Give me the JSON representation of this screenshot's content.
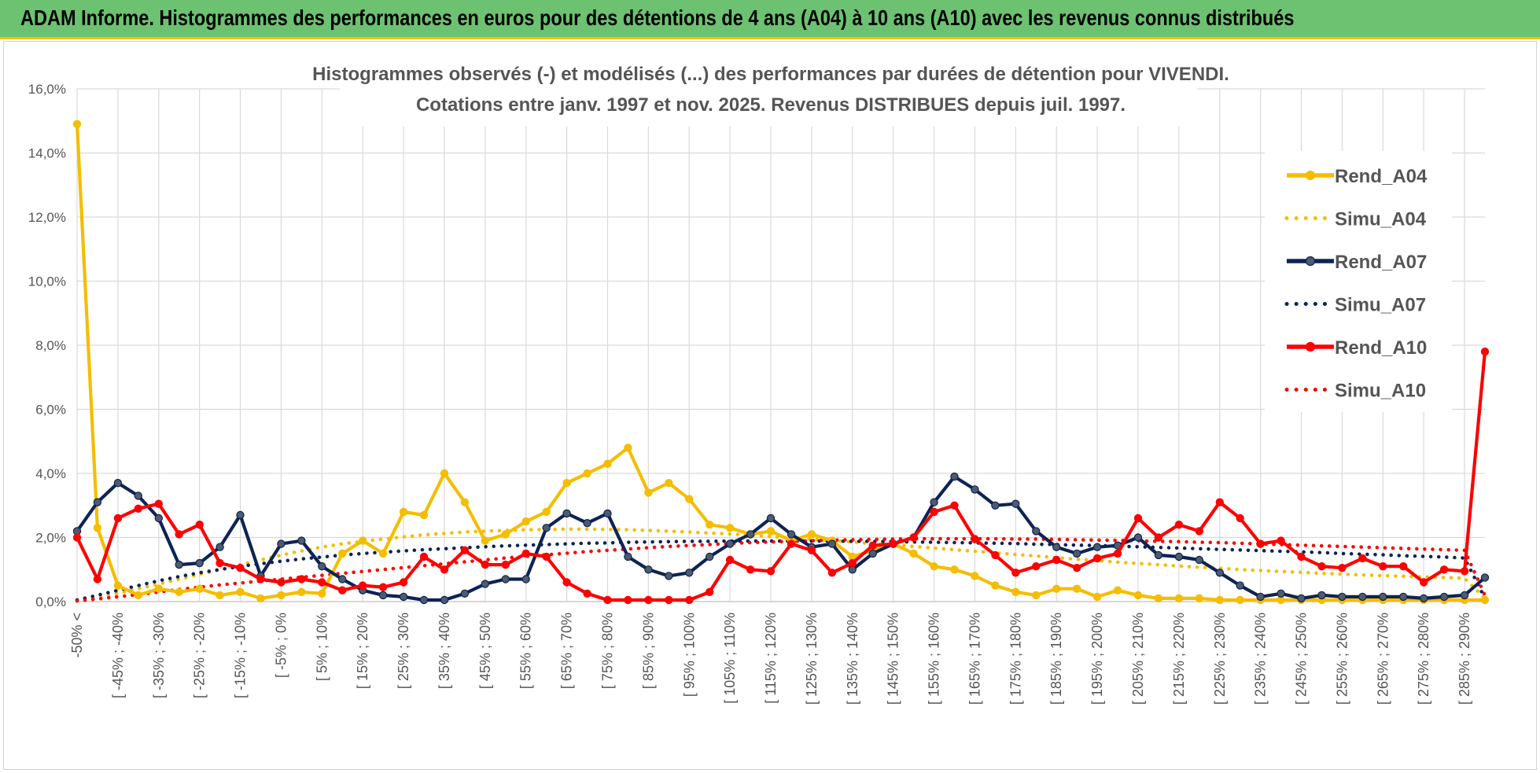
{
  "banner": {
    "title": "ADAM Informe. Histogrammes des performances en euros pour des détentions de 4 ans (A04) à 10 ans (A10) avec les revenus connus distribués"
  },
  "chart_data": {
    "type": "line",
    "title": "Histogrammes observés (-) et modélisés (...) des performances par durées de détention pour VIVENDI.",
    "subtitle": "Cotations entre janv. 1997 et nov. 2025. Revenus DISTRIBUES depuis juil. 1997.",
    "xlabel": "",
    "ylabel": "",
    "ylim": [
      0,
      16
    ],
    "yticks": [
      "0,0%",
      "2,0%",
      "4,0%",
      "6,0%",
      "8,0%",
      "10,0%",
      "12,0%",
      "14,0%",
      "16,0%"
    ],
    "x_tick_labels": [
      "-50% <",
      "[ -45% ; -40%",
      "[ -35% ; -30%",
      "[ -25% ; -20%",
      "[ -15% ; -10%",
      "[ -5% ; 0%",
      "[ 5% ; 10%",
      "[ 15% ; 20%",
      "[ 25% ; 30%",
      "[ 35% ; 40%",
      "[ 45% ; 50%",
      "[ 55% ; 60%",
      "[ 65% ; 70%",
      "[ 75% ; 80%",
      "[ 85% ; 90%",
      "[ 95% ; 100%",
      "[ 105% ; 110%",
      "[ 115% ; 120%",
      "[ 125% ; 130%",
      "[ 135% ; 140%",
      "[ 145% ; 150%",
      "[ 155% ; 160%",
      "[ 165% ; 170%",
      "[ 175% ; 180%",
      "[ 185% ; 190%",
      "[ 195% ; 200%",
      "[ 205% ; 210%",
      "[ 215% ; 220%",
      "[ 225% ; 230%",
      "[ 235% ; 240%",
      "[ 245% ; 250%",
      "[ 255% ; 260%",
      "[ 265% ; 270%",
      "[ 275% ; 280%",
      "[ 285% ; 290%"
    ],
    "n_categories": 70,
    "grid": true,
    "legend_position": "right",
    "series": [
      {
        "name": "Rend_A04",
        "style": "solid",
        "marker": true,
        "color": "#f5bd00",
        "values": [
          14.9,
          2.3,
          0.5,
          0.2,
          0.4,
          0.3,
          0.4,
          0.2,
          0.3,
          0.1,
          0.2,
          0.3,
          0.25,
          1.5,
          1.9,
          1.5,
          2.8,
          2.7,
          4.0,
          3.1,
          1.9,
          2.1,
          2.5,
          2.8,
          3.7,
          4.0,
          4.3,
          4.8,
          3.4,
          3.7,
          3.2,
          2.4,
          2.3,
          2.1,
          2.2,
          1.9,
          2.1,
          1.9,
          1.4,
          1.6,
          1.8,
          1.5,
          1.1,
          1.0,
          0.8,
          0.5,
          0.3,
          0.2,
          0.4,
          0.4,
          0.15,
          0.35,
          0.2,
          0.1,
          0.1,
          0.1,
          0.05,
          0.05,
          0.05,
          0.05,
          0.05,
          0.05,
          0.05,
          0.05,
          0.05,
          0.05,
          0.05,
          0.05,
          0.05,
          0.05
        ]
      },
      {
        "name": "Simu_A04",
        "style": "dotted",
        "marker": false,
        "color": "#f5bd00",
        "values": [
          0.05,
          0.12,
          0.25,
          0.4,
          0.55,
          0.7,
          0.85,
          1.0,
          1.15,
          1.3,
          1.45,
          1.58,
          1.7,
          1.8,
          1.88,
          1.95,
          2.02,
          2.08,
          2.13,
          2.17,
          2.2,
          2.22,
          2.24,
          2.25,
          2.26,
          2.26,
          2.25,
          2.24,
          2.22,
          2.2,
          2.17,
          2.14,
          2.11,
          2.07,
          2.03,
          1.99,
          1.95,
          1.91,
          1.86,
          1.81,
          1.77,
          1.72,
          1.67,
          1.62,
          1.57,
          1.52,
          1.47,
          1.42,
          1.37,
          1.32,
          1.28,
          1.23,
          1.19,
          1.15,
          1.11,
          1.07,
          1.04,
          1.0,
          0.97,
          0.94,
          0.91,
          0.88,
          0.86,
          0.83,
          0.81,
          0.79,
          0.77,
          0.75,
          0.73,
          0.1
        ]
      },
      {
        "name": "Rend_A07",
        "style": "solid",
        "marker": true,
        "color": "#0e2354",
        "values": [
          2.2,
          3.1,
          3.7,
          3.3,
          2.6,
          1.15,
          1.2,
          1.7,
          2.7,
          0.8,
          1.8,
          1.9,
          1.1,
          0.7,
          0.35,
          0.2,
          0.15,
          0.05,
          0.05,
          0.25,
          0.55,
          0.7,
          0.7,
          2.3,
          2.75,
          2.45,
          2.75,
          1.4,
          1.0,
          0.8,
          0.9,
          1.4,
          1.8,
          2.1,
          2.6,
          2.1,
          1.7,
          1.8,
          1.0,
          1.5,
          1.8,
          2.0,
          3.1,
          3.9,
          3.5,
          3.0,
          3.05,
          2.2,
          1.7,
          1.5,
          1.7,
          1.75,
          2.0,
          1.45,
          1.4,
          1.3,
          0.9,
          0.5,
          0.15,
          0.25,
          0.1,
          0.2,
          0.15,
          0.15,
          0.15,
          0.15,
          0.1,
          0.15,
          0.2,
          0.75
        ]
      },
      {
        "name": "Simu_A07",
        "style": "dotted",
        "marker": false,
        "color": "#0e2354",
        "values": [
          0.05,
          0.2,
          0.35,
          0.5,
          0.65,
          0.78,
          0.9,
          1.0,
          1.1,
          1.18,
          1.26,
          1.33,
          1.39,
          1.45,
          1.5,
          1.54,
          1.58,
          1.62,
          1.65,
          1.68,
          1.71,
          1.74,
          1.76,
          1.78,
          1.8,
          1.82,
          1.83,
          1.85,
          1.86,
          1.87,
          1.88,
          1.88,
          1.89,
          1.89,
          1.89,
          1.89,
          1.89,
          1.89,
          1.88,
          1.88,
          1.87,
          1.86,
          1.85,
          1.84,
          1.83,
          1.82,
          1.81,
          1.79,
          1.78,
          1.76,
          1.75,
          1.73,
          1.71,
          1.69,
          1.67,
          1.65,
          1.63,
          1.61,
          1.59,
          1.57,
          1.55,
          1.53,
          1.5,
          1.48,
          1.46,
          1.43,
          1.41,
          1.39,
          1.36,
          0.1
        ]
      },
      {
        "name": "Rend_A10",
        "style": "solid",
        "marker": true,
        "color": "#ff0000",
        "values": [
          2.0,
          0.7,
          2.6,
          2.9,
          3.05,
          2.1,
          2.4,
          1.2,
          1.05,
          0.7,
          0.6,
          0.7,
          0.6,
          0.35,
          0.5,
          0.45,
          0.6,
          1.4,
          1.0,
          1.6,
          1.15,
          1.15,
          1.5,
          1.4,
          0.6,
          0.25,
          0.05,
          0.05,
          0.05,
          0.05,
          0.05,
          0.3,
          1.3,
          1.0,
          0.95,
          1.8,
          1.6,
          0.9,
          1.2,
          1.75,
          1.8,
          2.0,
          2.8,
          3.0,
          1.95,
          1.45,
          0.9,
          1.1,
          1.3,
          1.05,
          1.35,
          1.5,
          2.6,
          2.0,
          2.4,
          2.2,
          3.1,
          2.6,
          1.8,
          1.9,
          1.4,
          1.1,
          1.05,
          1.35,
          1.1,
          1.1,
          0.6,
          1.0,
          0.95,
          7.8
        ]
      },
      {
        "name": "Simu_A10",
        "style": "dotted",
        "marker": false,
        "color": "#ff0000",
        "values": [
          0.02,
          0.08,
          0.15,
          0.22,
          0.3,
          0.38,
          0.45,
          0.52,
          0.58,
          0.64,
          0.7,
          0.76,
          0.82,
          0.88,
          0.94,
          1.0,
          1.06,
          1.12,
          1.18,
          1.24,
          1.3,
          1.36,
          1.41,
          1.46,
          1.51,
          1.56,
          1.6,
          1.64,
          1.68,
          1.72,
          1.75,
          1.78,
          1.81,
          1.84,
          1.86,
          1.88,
          1.9,
          1.92,
          1.93,
          1.94,
          1.95,
          1.96,
          1.96,
          1.96,
          1.96,
          1.96,
          1.95,
          1.95,
          1.94,
          1.93,
          1.92,
          1.91,
          1.9,
          1.88,
          1.87,
          1.85,
          1.84,
          1.82,
          1.8,
          1.78,
          1.76,
          1.74,
          1.72,
          1.7,
          1.68,
          1.66,
          1.64,
          1.62,
          1.6,
          0.2
        ]
      }
    ]
  }
}
